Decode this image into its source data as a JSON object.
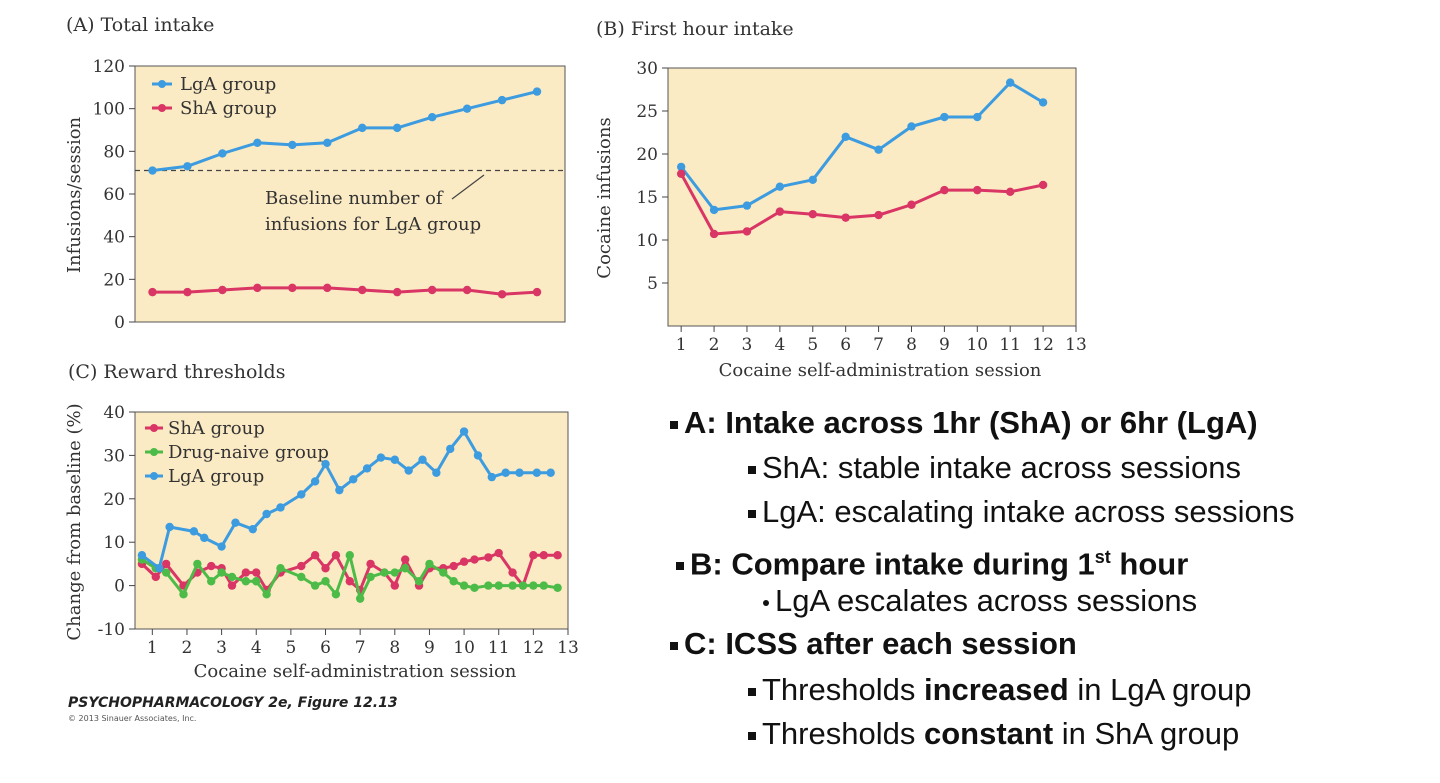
{
  "figure_credit": {
    "title": "PSYCHOPHARMACOLOGY 2e, Figure 12.13",
    "copyright": "© 2013 Sinauer Associates, Inc."
  },
  "colors": {
    "plot_bg": "#fbebc4",
    "lga": "#3d9be0",
    "sha": "#d93565",
    "naive": "#4cbb48"
  },
  "chart_data": [
    {
      "id": "A",
      "type": "line",
      "title": "(A) Total intake",
      "xlabel": "",
      "ylabel": "Infusions/session",
      "xlim": [
        0.5,
        12.8
      ],
      "ylim": [
        0,
        120
      ],
      "yticks": [
        0,
        20,
        40,
        60,
        80,
        100,
        120
      ],
      "x": [
        1,
        2,
        3,
        4,
        5,
        6,
        7,
        8,
        9,
        10,
        11,
        12
      ],
      "series": [
        {
          "name": "LgA group",
          "color": "#3d9be0",
          "values": [
            71,
            73,
            79,
            84,
            83,
            84,
            91,
            91,
            96,
            100,
            104,
            108
          ]
        },
        {
          "name": "ShA group",
          "color": "#d93565",
          "values": [
            14,
            14,
            15,
            16,
            16,
            16,
            15,
            14,
            15,
            15,
            13,
            14
          ]
        }
      ],
      "baseline_y": 71,
      "annotation": [
        "Baseline number of",
        "infusions for LgA group"
      ]
    },
    {
      "id": "B",
      "type": "line",
      "title": "(B) First hour intake",
      "xlabel": "Cocaine self-administration session",
      "ylabel": "Cocaine infusions",
      "xlim": [
        0.6,
        13
      ],
      "ylim": [
        0,
        30
      ],
      "yticks": [
        5,
        10,
        15,
        20,
        25,
        30
      ],
      "xticks": [
        1,
        2,
        3,
        4,
        5,
        6,
        7,
        8,
        9,
        10,
        11,
        12,
        13
      ],
      "x": [
        1,
        2,
        3,
        4,
        5,
        6,
        7,
        8,
        9,
        10,
        11,
        12
      ],
      "series": [
        {
          "name": "LgA group",
          "color": "#3d9be0",
          "values": [
            18.5,
            13.5,
            14,
            16.2,
            17,
            22,
            20.5,
            23.2,
            24.3,
            24.3,
            28.3,
            26
          ]
        },
        {
          "name": "ShA group",
          "color": "#d93565",
          "values": [
            17.7,
            10.7,
            11,
            13.3,
            13,
            12.6,
            12.9,
            14.1,
            15.8,
            15.8,
            15.6,
            16.4
          ]
        }
      ]
    },
    {
      "id": "C",
      "type": "line",
      "title": "(C) Reward thresholds",
      "xlabel": "Cocaine self-administration session",
      "ylabel": "Change from baseline (%)",
      "xlim": [
        0.5,
        13
      ],
      "ylim": [
        -10,
        40
      ],
      "yticks": [
        -10,
        0,
        10,
        20,
        30,
        40
      ],
      "xticks": [
        1,
        2,
        3,
        4,
        5,
        6,
        7,
        8,
        9,
        10,
        11,
        12,
        13
      ],
      "series": [
        {
          "name": "ShA group",
          "color": "#d93565",
          "x": [
            0.7,
            1.1,
            1.4,
            1.9,
            2.3,
            2.7,
            3.0,
            3.3,
            3.7,
            4.0,
            4.3,
            4.7,
            5.3,
            5.7,
            6.0,
            6.3,
            6.7,
            7.0,
            7.3,
            7.7,
            8.0,
            8.3,
            8.7,
            9.0,
            9.4,
            9.7,
            10.0,
            10.3,
            10.7,
            11.0,
            11.4,
            11.7,
            12.0,
            12.3,
            12.7
          ],
          "values": [
            5,
            2,
            5,
            0,
            3,
            4.5,
            4,
            0,
            3,
            3,
            -1,
            3,
            4.5,
            7,
            4,
            7,
            1,
            -1,
            5,
            3,
            0,
            6,
            0,
            4,
            4,
            4.5,
            5.5,
            6,
            6.5,
            7.5,
            3,
            0,
            7,
            7,
            7
          ]
        },
        {
          "name": "Drug-naive group",
          "color": "#4cbb48",
          "x": [
            0.7,
            1.1,
            1.4,
            1.9,
            2.3,
            2.7,
            3.0,
            3.3,
            3.7,
            4.0,
            4.3,
            4.7,
            5.3,
            5.7,
            6.0,
            6.3,
            6.7,
            7.0,
            7.3,
            7.7,
            8.0,
            8.3,
            8.7,
            9.0,
            9.4,
            9.7,
            10.0,
            10.3,
            10.7,
            11.0,
            11.4,
            11.7,
            12.0,
            12.3,
            12.7
          ],
          "values": [
            6,
            4,
            3,
            -2,
            5,
            1,
            3,
            2,
            1,
            1,
            -2,
            4,
            2,
            0,
            1,
            -2,
            7,
            -3,
            2,
            3,
            3,
            4,
            1,
            5,
            3,
            1,
            0,
            -0.5,
            0,
            0,
            0,
            0,
            0,
            0,
            -0.5
          ]
        },
        {
          "name": "LgA group",
          "color": "#3d9be0",
          "x": [
            0.7,
            1.2,
            1.5,
            2.2,
            2.5,
            3.0,
            3.4,
            3.9,
            4.3,
            4.7,
            5.3,
            5.7,
            6.0,
            6.4,
            6.8,
            7.2,
            7.6,
            8.0,
            8.4,
            8.8,
            9.2,
            9.6,
            10.0,
            10.4,
            10.8,
            11.2,
            11.6,
            12.1,
            12.5
          ],
          "values": [
            7,
            4,
            13.5,
            12.5,
            11,
            9,
            14.5,
            13,
            16.5,
            18,
            21,
            24,
            28,
            22,
            24.5,
            27,
            29.5,
            29,
            26.5,
            29,
            26,
            31.5,
            35.5,
            30,
            25,
            26,
            26,
            26,
            26
          ]
        }
      ]
    }
  ],
  "notes": [
    {
      "level": 1,
      "text": "A: Intake across 1hr (ShA) or 6hr (LgA)"
    },
    {
      "level": 2,
      "text": "ShA: stable intake across sessions"
    },
    {
      "level": 2,
      "text": "LgA: escalating intake across sessions"
    },
    {
      "level": 1,
      "pre": "B: Compare intake during 1",
      "sup": "st",
      "post": " hour"
    },
    {
      "level": 3,
      "text": "LgA escalates across sessions"
    },
    {
      "level": 1,
      "text": "C: ICSS after each session"
    },
    {
      "level": 2,
      "pre": "Thresholds ",
      "bold": "increased",
      "post": " in LgA group"
    },
    {
      "level": 2,
      "pre": "Thresholds ",
      "bold": "constant",
      "post": " in ShA group"
    }
  ]
}
